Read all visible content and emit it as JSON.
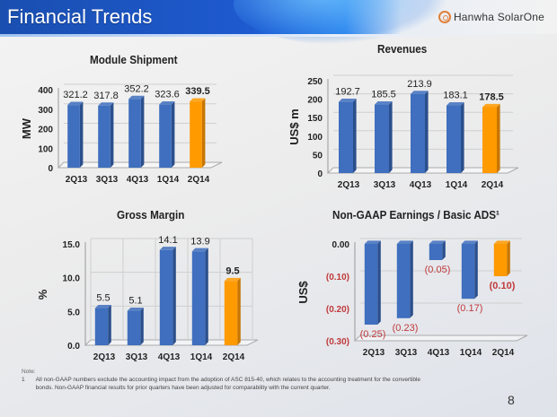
{
  "header": {
    "title": "Financial Trends",
    "logo_text": "Hanwha SolarOne",
    "logo_icon": "hanwha-logo-icon"
  },
  "colors": {
    "bar_blue": "#3f6fbe",
    "bar_blue_side": "#2b4f8c",
    "bar_orange": "#ff9a00",
    "bar_orange_side": "#c87600",
    "negative_label": "#c0393b"
  },
  "chart_data": [
    {
      "id": "module-shipment",
      "type": "bar",
      "title": "Module Shipment",
      "categories": [
        "2Q13",
        "3Q13",
        "4Q13",
        "1Q14",
        "2Q14"
      ],
      "values": [
        321.2,
        317.8,
        352.2,
        323.6,
        339.5
      ],
      "value_labels": [
        "321.2",
        "317.8",
        "352.2",
        "323.6",
        "339.5"
      ],
      "highlight_index": 4,
      "xlabel": "",
      "ylabel": "MW",
      "ylim": [
        0,
        400
      ],
      "yticks": [
        0,
        100,
        200,
        300,
        400
      ],
      "ytick_labels": [
        "0",
        "100",
        "200",
        "300",
        "400"
      ],
      "grid": true
    },
    {
      "id": "revenues",
      "type": "bar",
      "title": "Revenues",
      "categories": [
        "2Q13",
        "3Q13",
        "4Q13",
        "1Q14",
        "2Q14"
      ],
      "values": [
        192.7,
        185.5,
        213.9,
        183.1,
        178.5
      ],
      "value_labels": [
        "192.7",
        "185.5",
        "213.9",
        "183.1",
        "178.5"
      ],
      "highlight_index": 4,
      "xlabel": "",
      "ylabel": "US$ m",
      "ylim": [
        0,
        250
      ],
      "yticks": [
        0,
        50,
        100,
        150,
        200,
        250
      ],
      "ytick_labels": [
        "0",
        "50",
        "100",
        "150",
        "200",
        "250"
      ],
      "grid": true
    },
    {
      "id": "gross-margin",
      "type": "bar",
      "title": "Gross Margin",
      "categories": [
        "2Q13",
        "3Q13",
        "4Q13",
        "1Q14",
        "2Q14"
      ],
      "values": [
        5.5,
        5.1,
        14.1,
        13.9,
        9.5
      ],
      "value_labels": [
        "5.5",
        "5.1",
        "14.1",
        "13.9",
        "9.5"
      ],
      "highlight_index": 4,
      "xlabel": "",
      "ylabel": "%",
      "ylim": [
        0,
        15
      ],
      "yticks": [
        0,
        5,
        10,
        15
      ],
      "ytick_labels": [
        "0.0",
        "5.0",
        "10.0",
        "15.0"
      ],
      "grid": true
    },
    {
      "id": "non-gaap-eps",
      "type": "bar",
      "title": "Non-GAAP Earnings / Basic ADS¹",
      "categories": [
        "2Q13",
        "3Q13",
        "4Q13",
        "1Q14",
        "2Q14"
      ],
      "values": [
        -0.25,
        -0.23,
        -0.05,
        -0.17,
        -0.1
      ],
      "value_labels": [
        "(0.25)",
        "(0.23)",
        "(0.05)",
        "(0.17)",
        "(0.10)"
      ],
      "highlight_index": 4,
      "xlabel": "",
      "ylabel": "US$",
      "ylim": [
        -0.3,
        0
      ],
      "yticks": [
        0,
        -0.1,
        -0.2,
        -0.3
      ],
      "ytick_labels": [
        "0.00",
        "(0.10)",
        "(0.20)",
        "(0.30)"
      ],
      "grid": true
    }
  ],
  "footnote": {
    "label": "Note:",
    "number": "1",
    "line1": "All non-GAAP numbers exclude the accounting impact from the adoption of ASC 815-40, which relates to the accounting treatment for the convertible",
    "line2": "bonds.  Non-GAAP financial results for prior quarters have been adjusted for comparability with the current quarter."
  },
  "page_number": "8"
}
